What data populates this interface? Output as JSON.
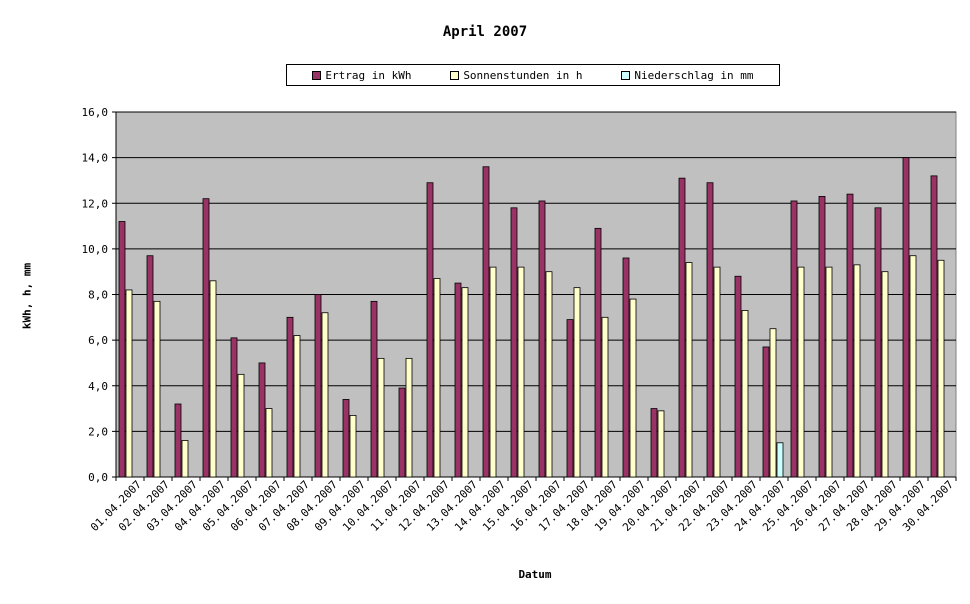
{
  "chart_data": {
    "type": "bar",
    "title": "April 2007",
    "xlabel": "Datum",
    "ylabel": "kWh, h, mm",
    "ylim": [
      0,
      16
    ],
    "ytick_step": 2,
    "ytick_labels": [
      "0,0",
      "2,0",
      "4,0",
      "6,0",
      "8,0",
      "10,0",
      "12,0",
      "14,0",
      "16,0"
    ],
    "grid": true,
    "legend_position": "top",
    "categories": [
      "01.04.2007",
      "02.04.2007",
      "03.04.2007",
      "04.04.2007",
      "05.04.2007",
      "06.04.2007",
      "07.04.2007",
      "08.04.2007",
      "09.04.2007",
      "10.04.2007",
      "11.04.2007",
      "12.04.2007",
      "13.04.2007",
      "14.04.2007",
      "15.04.2007",
      "16.04.2007",
      "17.04.2007",
      "18.04.2007",
      "19.04.2007",
      "20.04.2007",
      "21.04.2007",
      "22.04.2007",
      "23.04.2007",
      "24.04.2007",
      "25.04.2007",
      "26.04.2007",
      "27.04.2007",
      "28.04.2007",
      "29.04.2007",
      "30.04.2007"
    ],
    "series": [
      {
        "name": "Ertrag in kWh",
        "color": "#993366",
        "values": [
          11.2,
          9.7,
          3.2,
          12.2,
          6.1,
          5.0,
          7.0,
          8.0,
          3.4,
          7.7,
          3.9,
          12.9,
          8.5,
          13.6,
          11.8,
          12.1,
          6.9,
          10.9,
          9.6,
          3.0,
          13.1,
          12.9,
          8.8,
          5.7,
          12.1,
          12.3,
          12.4,
          11.8,
          14.0,
          13.2
        ]
      },
      {
        "name": "Sonnenstunden in h",
        "color": "#ffffcc",
        "values": [
          8.2,
          7.7,
          1.6,
          8.6,
          4.5,
          3.0,
          6.2,
          7.2,
          2.7,
          5.2,
          5.2,
          8.7,
          8.3,
          9.2,
          9.2,
          9.0,
          8.3,
          7.0,
          7.8,
          2.9,
          9.4,
          9.2,
          7.3,
          6.5,
          9.2,
          9.2,
          9.3,
          9.0,
          9.7,
          9.5
        ]
      },
      {
        "name": "Niederschlag in mm",
        "color": "#ccffff",
        "values": [
          0,
          0,
          0,
          0,
          0,
          0,
          0,
          0,
          0,
          0,
          0,
          0,
          0,
          0,
          0,
          0,
          0,
          0,
          0,
          0,
          0,
          0,
          0,
          1.5,
          0,
          0,
          0,
          0,
          0,
          0
        ]
      }
    ],
    "plot_background": "#c0c0c0"
  }
}
